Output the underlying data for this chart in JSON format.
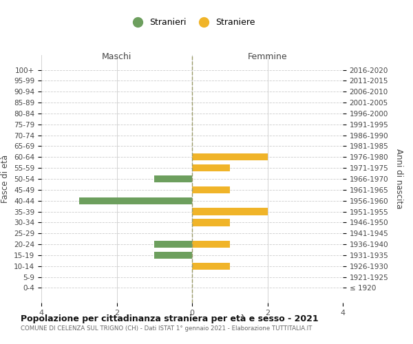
{
  "age_groups": [
    "100+",
    "95-99",
    "90-94",
    "85-89",
    "80-84",
    "75-79",
    "70-74",
    "65-69",
    "60-64",
    "55-59",
    "50-54",
    "45-49",
    "40-44",
    "35-39",
    "30-34",
    "25-29",
    "20-24",
    "15-19",
    "10-14",
    "5-9",
    "0-4"
  ],
  "birth_years": [
    "≤ 1920",
    "1921-1925",
    "1926-1930",
    "1931-1935",
    "1936-1940",
    "1941-1945",
    "1946-1950",
    "1951-1955",
    "1956-1960",
    "1961-1965",
    "1966-1970",
    "1971-1975",
    "1976-1980",
    "1981-1985",
    "1986-1990",
    "1991-1995",
    "1996-2000",
    "2001-2005",
    "2006-2010",
    "2011-2015",
    "2016-2020"
  ],
  "maschi": [
    0,
    0,
    0,
    0,
    0,
    0,
    0,
    0,
    0,
    0,
    1,
    0,
    3,
    0,
    0,
    0,
    1,
    1,
    0,
    0,
    0
  ],
  "femmine": [
    0,
    0,
    0,
    0,
    0,
    0,
    0,
    0,
    2,
    1,
    0,
    1,
    0,
    2,
    1,
    0,
    1,
    0,
    1,
    0,
    0
  ],
  "color_maschi": "#6d9f5e",
  "color_femmine": "#f0b429",
  "xlim": 4,
  "title": "Popolazione per cittadinanza straniera per età e sesso - 2021",
  "subtitle": "COMUNE DI CELENZA SUL TRIGNO (CH) - Dati ISTAT 1° gennaio 2021 - Elaborazione TUTTITALIA.IT",
  "ylabel_left": "Fasce di età",
  "ylabel_right": "Anni di nascita",
  "label_maschi": "Stranieri",
  "label_femmine": "Straniere",
  "header_maschi": "Maschi",
  "header_femmine": "Femmine",
  "bg_color": "#ffffff",
  "grid_color": "#cccccc"
}
